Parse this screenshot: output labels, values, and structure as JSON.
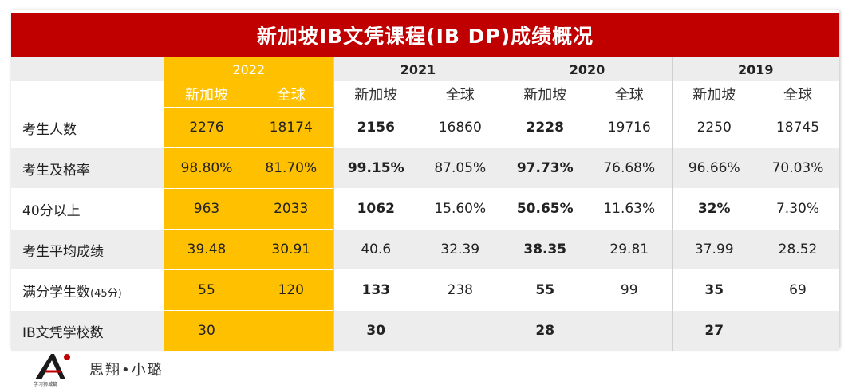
{
  "title": "新加坡IB文凭课程(IB DP)成绩概况",
  "years": [
    "2022",
    "2021",
    "2020",
    "2019"
  ],
  "sub_headers": {
    "sg": "新加坡",
    "global": "全球"
  },
  "rows": [
    {
      "label": "考生人数",
      "label_suffix": "",
      "values": [
        "2276",
        "18174",
        "2156",
        "16860",
        "2228",
        "19716",
        "2250",
        "18745"
      ]
    },
    {
      "label": "考生及格率",
      "label_suffix": "",
      "values": [
        "98.80%",
        "81.70%",
        "99.15%",
        "87.05%",
        "97.73%",
        "76.68%",
        "96.66%",
        "70.03%"
      ]
    },
    {
      "label": "40分以上",
      "label_suffix": "",
      "values": [
        "963",
        "2033",
        "1062",
        "15.60%",
        "50.65%",
        "11.63%",
        "32%",
        "7.30%"
      ]
    },
    {
      "label": "考生平均成绩",
      "label_suffix": "",
      "values": [
        "39.48",
        "30.91",
        "40.6",
        "32.39",
        "38.35",
        "29.81",
        "37.99",
        "28.52"
      ]
    },
    {
      "label": "满分学生数",
      "label_suffix": "(45分)",
      "values": [
        "55",
        "120",
        "133",
        "238",
        "55",
        "99",
        "35",
        "69"
      ]
    },
    {
      "label": "IB文凭学校数",
      "label_suffix": "",
      "values": [
        "30",
        "",
        "30",
        "",
        "28",
        "",
        "27",
        ""
      ]
    }
  ],
  "footer": {
    "brand_text": "思翔•小璐",
    "logo_caption": "学习狮城篇"
  },
  "colors": {
    "title_bg": "#c00000",
    "highlight_2022": "#ffc000",
    "stripe": "#ededed"
  },
  "icons": {
    "logo": "letter-a-logo-icon",
    "watermark": "lion-watermark-icon"
  }
}
